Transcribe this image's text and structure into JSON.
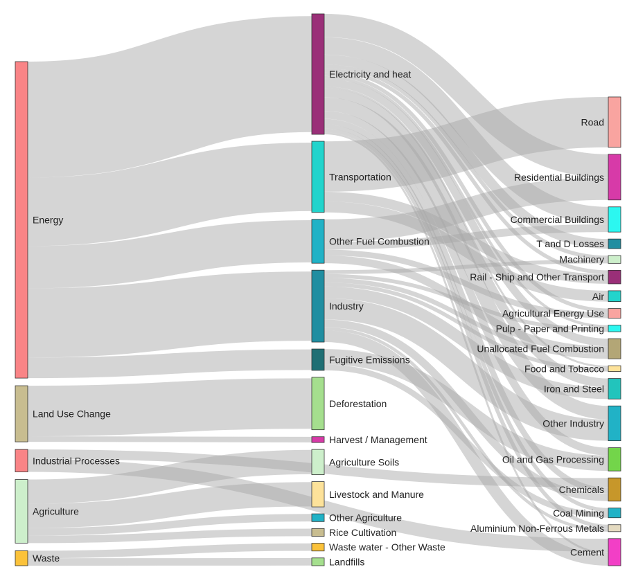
{
  "chart_data": {
    "type": "sankey",
    "title": "",
    "levels": [
      [
        "Energy",
        "Land Use Change",
        "Industrial Processes",
        "Agriculture",
        "Waste"
      ],
      [
        "Electricity and heat",
        "Transportation",
        "Other Fuel Combustion",
        "Industry",
        "Fugitive Emissions",
        "Deforestation",
        "Harvest / Management",
        "Agriculture Soils",
        "Livestock and Manure",
        "Other Agriculture",
        "Rice Cultivation",
        "Waste water - Other Waste",
        "Landfills"
      ],
      [
        "Road",
        "Residential Buildings",
        "Commercial Buildings",
        "T and D Losses",
        "Machinery",
        "Rail - Ship and Other Transport",
        "Air",
        "Agricultural Energy Use",
        "Pulp - Paper and Printing",
        "Unallocated Fuel Combustion",
        "Food and Tobacco",
        "Iron and Steel",
        "Other Industry",
        "Oil and Gas Processing",
        "Chemicals",
        "Coal Mining",
        "Aluminium Non-Ferrous Metals",
        "Cement"
      ]
    ],
    "node_colors": {
      "Energy": "#f98486",
      "Land Use Change": "#c8bd90",
      "Industrial Processes": "#f98486",
      "Agriculture": "#cdefcb",
      "Waste": "#fbc23a",
      "Electricity and heat": "#9a2f78",
      "Transportation": "#22d4cc",
      "Other Fuel Combustion": "#21b2c6",
      "Industry": "#208ea1",
      "Fugitive Emissions": "#1f6f74",
      "Deforestation": "#a5df8e",
      "Harvest / Management": "#d73aa8",
      "Agriculture Soils": "#cdefcb",
      "Livestock and Manure": "#fde29a",
      "Other Agriculture": "#21b2c6",
      "Rice Cultivation": "#c8bd90",
      "Waste water - Other Waste": "#fbc23a",
      "Landfills": "#a5df8e",
      "Road": "#f9a4a0",
      "Residential Buildings": "#d73aa8",
      "Commercial Buildings": "#2cf7f0",
      "T and D Losses": "#208ea1",
      "Machinery": "#cdefcb",
      "Rail - Ship and Other Transport": "#9a2f78",
      "Air": "#22d4cc",
      "Agricultural Energy Use": "#f9a4a0",
      "Pulp - Paper and Printing": "#2cf7f0",
      "Unallocated Fuel Combustion": "#b3a676",
      "Food and Tobacco": "#fde29a",
      "Iron and Steel": "#22c4bc",
      "Other Industry": "#21b2c6",
      "Oil and Gas Processing": "#73d54a",
      "Chemicals": "#c7972a",
      "Coal Mining": "#21b2c6",
      "Aluminium Non-Ferrous Metals": "#e4dac0",
      "Cement": "#f23fc6"
    },
    "links": [
      {
        "source": "Energy",
        "target": "Electricity and heat",
        "value": 31.0
      },
      {
        "source": "Energy",
        "target": "Transportation",
        "value": 18.3
      },
      {
        "source": "Energy",
        "target": "Other Fuel Combustion",
        "value": 11.3
      },
      {
        "source": "Energy",
        "target": "Industry",
        "value": 18.5
      },
      {
        "source": "Energy",
        "target": "Fugitive Emissions",
        "value": 5.5
      },
      {
        "source": "Land Use Change",
        "target": "Deforestation",
        "value": 13.5
      },
      {
        "source": "Land Use Change",
        "target": "Harvest / Management",
        "value": 1.5
      },
      {
        "source": "Industrial Processes",
        "target": "Chemicals",
        "value": 2.5
      },
      {
        "source": "Industrial Processes",
        "target": "Cement",
        "value": 3.5
      },
      {
        "source": "Agriculture",
        "target": "Agriculture Soils",
        "value": 6.5
      },
      {
        "source": "Agriculture",
        "target": "Livestock and Manure",
        "value": 6.5
      },
      {
        "source": "Agriculture",
        "target": "Other Agriculture",
        "value": 2.0
      },
      {
        "source": "Agriculture",
        "target": "Rice Cultivation",
        "value": 2.0
      },
      {
        "source": "Waste",
        "target": "Waste water - Other Waste",
        "value": 2.0
      },
      {
        "source": "Waste",
        "target": "Landfills",
        "value": 2.0
      },
      {
        "source": "Electricity and heat",
        "target": "Residential Buildings",
        "value": 6.0
      },
      {
        "source": "Electricity and heat",
        "target": "Commercial Buildings",
        "value": 4.5
      },
      {
        "source": "Electricity and heat",
        "target": "T and D Losses",
        "value": 2.5
      },
      {
        "source": "Electricity and heat",
        "target": "Machinery",
        "value": 1.0
      },
      {
        "source": "Electricity and heat",
        "target": "Rail - Ship and Other Transport",
        "value": 1.0
      },
      {
        "source": "Electricity and heat",
        "target": "Agricultural Energy Use",
        "value": 1.0
      },
      {
        "source": "Electricity and heat",
        "target": "Pulp - Paper and Printing",
        "value": 0.7
      },
      {
        "source": "Electricity and heat",
        "target": "Unallocated Fuel Combustion",
        "value": 2.0
      },
      {
        "source": "Electricity and heat",
        "target": "Food and Tobacco",
        "value": 0.5
      },
      {
        "source": "Electricity and heat",
        "target": "Iron and Steel",
        "value": 2.3
      },
      {
        "source": "Electricity and heat",
        "target": "Other Industry",
        "value": 3.5
      },
      {
        "source": "Electricity and heat",
        "target": "Oil and Gas Processing",
        "value": 2.0
      },
      {
        "source": "Electricity and heat",
        "target": "Chemicals",
        "value": 1.5
      },
      {
        "source": "Electricity and heat",
        "target": "Coal Mining",
        "value": 1.0
      },
      {
        "source": "Electricity and heat",
        "target": "Aluminium Non-Ferrous Metals",
        "value": 1.0
      },
      {
        "source": "Electricity and heat",
        "target": "Cement",
        "value": 0.5
      },
      {
        "source": "Transportation",
        "target": "Road",
        "value": 13.0
      },
      {
        "source": "Transportation",
        "target": "Rail - Ship and Other Transport",
        "value": 2.5
      },
      {
        "source": "Transportation",
        "target": "Air",
        "value": 2.8
      },
      {
        "source": "Other Fuel Combustion",
        "target": "Residential Buildings",
        "value": 5.8
      },
      {
        "source": "Other Fuel Combustion",
        "target": "Commercial Buildilding",
        "value": 0.0
      },
      {
        "source": "Other Fuel Combustion",
        "target": "Commercial Buildings",
        "value": 2.0
      },
      {
        "source": "Other Fuel Combustion",
        "target": "Agricultural Energy Use",
        "value": 1.5
      },
      {
        "source": "Other Fuel Combustion",
        "target": "Unallocated Fuel Combustion",
        "value": 2.0
      },
      {
        "source": "Industry",
        "target": "Machinery",
        "value": 1.0
      },
      {
        "source": "Industry",
        "target": "Pulp - Paper and Printing",
        "value": 1.0
      },
      {
        "source": "Industry",
        "target": "Unallocated Fuel Combustion",
        "value": 1.2
      },
      {
        "source": "Industry",
        "target": "Food and Tobacco",
        "value": 1.0
      },
      {
        "source": "Industry",
        "target": "Iron and Steel",
        "value": 3.0
      },
      {
        "source": "Industry",
        "target": "Other Industry",
        "value": 5.5
      },
      {
        "source": "Industry",
        "target": "Chemicals",
        "value": 2.0
      },
      {
        "source": "Industry",
        "target": "Aluminium Non-Ferrous Metals",
        "value": 0.8
      },
      {
        "source": "Industry",
        "target": "Cement",
        "value": 3.0
      },
      {
        "source": "Fugitive Emissions",
        "target": "Oil and Gas Processing",
        "value": 4.0
      },
      {
        "source": "Fugitive Emissions",
        "target": "Coal Mining",
        "value": 1.5
      }
    ]
  }
}
